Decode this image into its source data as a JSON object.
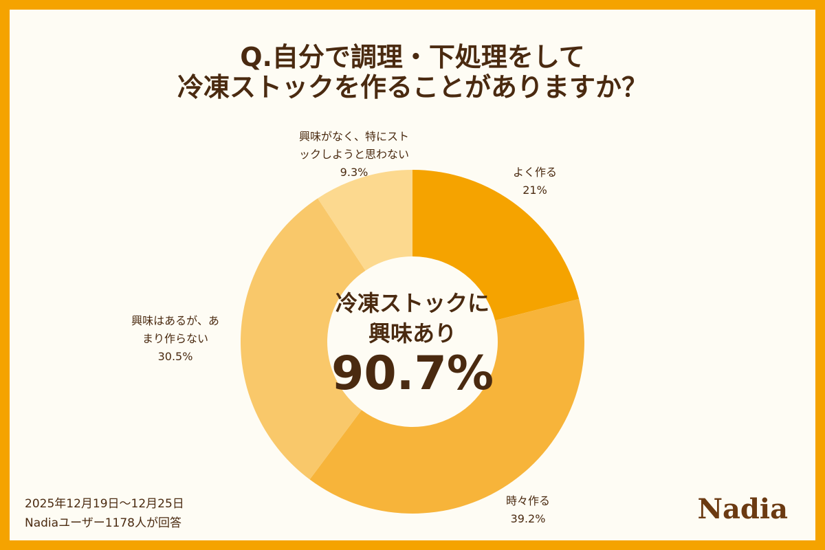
{
  "chart_data": {
    "type": "donut",
    "title": [
      "Q.自分で調理・下処理をして",
      "冷凍ストックを作ることがありますか？"
    ],
    "categories": [
      "よく作る",
      "時々作る",
      "興味はあるが、あまり作らない",
      "興味がなく、特にストックしようと思わない"
    ],
    "values": [
      21,
      39.2,
      30.5,
      9.3
    ],
    "value_labels": [
      "21%",
      "39.2%",
      "30.5%",
      "9.3%"
    ],
    "colors": [
      "#f5a300",
      "#f7b43a",
      "#f9c86a",
      "#fcd98f"
    ],
    "center_text": [
      "冷凍ストックに",
      "興味あり"
    ],
    "center_value": {
      "value": 90.7,
      "label": "90.7%"
    }
  },
  "footer": [
    "2025年12月19日〜12月25日",
    "Nadiaユーザー1178人が回答"
  ],
  "logo": "Nadia"
}
